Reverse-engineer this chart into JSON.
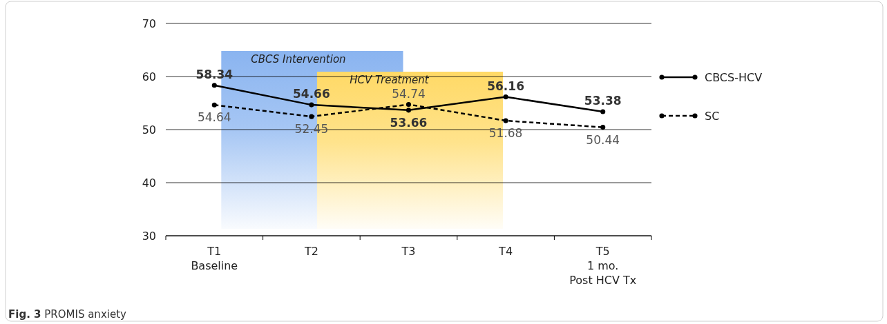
{
  "chart_data": {
    "type": "line",
    "categories": [
      "T1\nBaseline",
      "T2",
      "T3",
      "T4",
      "T5\n1 mo.\nPost HCV Tx"
    ],
    "series": [
      {
        "name": "CBCS-HCV",
        "color": "#000000",
        "values": [
          58.34,
          54.66,
          53.66,
          56.16,
          53.38
        ],
        "line_style": "solid"
      },
      {
        "name": "SC",
        "color": "#000000",
        "values": [
          54.64,
          52.45,
          54.74,
          51.68,
          50.44
        ],
        "line_style": "dashed"
      }
    ],
    "ylim": [
      30,
      70
    ],
    "yticks": [
      30,
      40,
      50,
      60,
      70
    ],
    "grid": "y",
    "legend": "right",
    "marker": "circle",
    "data_labels": true,
    "bands": [
      {
        "axis": "x",
        "from": "T1\nBaseline",
        "to": "T3",
        "label": "CBCS Intervention",
        "color": "#8ab4f0"
      },
      {
        "axis": "x",
        "from": "T2",
        "to": "T4",
        "label": "HCV Treatment",
        "color": "#ffd966"
      }
    ],
    "annotations": [
      "Fig. 3 PROMIS anxiety"
    ]
  }
}
